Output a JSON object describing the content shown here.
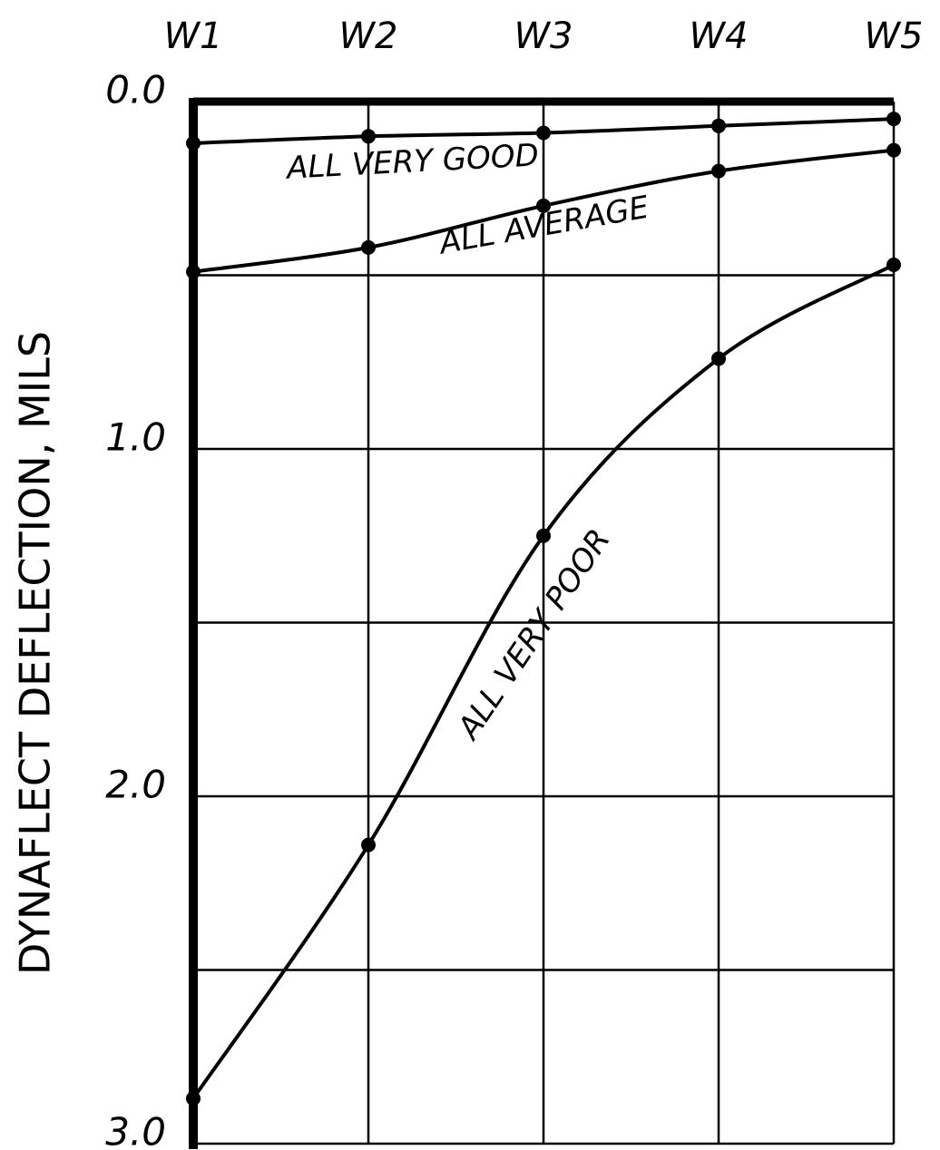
{
  "chart_data": {
    "type": "line",
    "categories": [
      "W1",
      "W2",
      "W3",
      "W4",
      "W5"
    ],
    "y_label": "DYNAFLECT DEFLECTION, MILS",
    "ylim": [
      0,
      3
    ],
    "y_inverted": true,
    "yticks": [
      {
        "value": 0,
        "label": "0.0"
      },
      {
        "value": 1,
        "label": "1.0"
      },
      {
        "value": 2,
        "label": "2.0"
      },
      {
        "value": 3,
        "label": "3.0"
      }
    ],
    "y_minor_grid": [
      0.5,
      1.5,
      2.5
    ],
    "grid": true,
    "series": [
      {
        "name": "ALL VERY GOOD",
        "color": "#000000",
        "values": [
          0.12,
          0.1,
          0.09,
          0.07,
          0.05
        ]
      },
      {
        "name": "ALL AVERAGE",
        "color": "#000000",
        "values": [
          0.49,
          0.42,
          0.3,
          0.2,
          0.14
        ]
      },
      {
        "name": "ALL VERY POOR",
        "color": "#000000",
        "values": [
          2.87,
          2.14,
          1.25,
          0.74,
          0.47
        ]
      }
    ]
  }
}
